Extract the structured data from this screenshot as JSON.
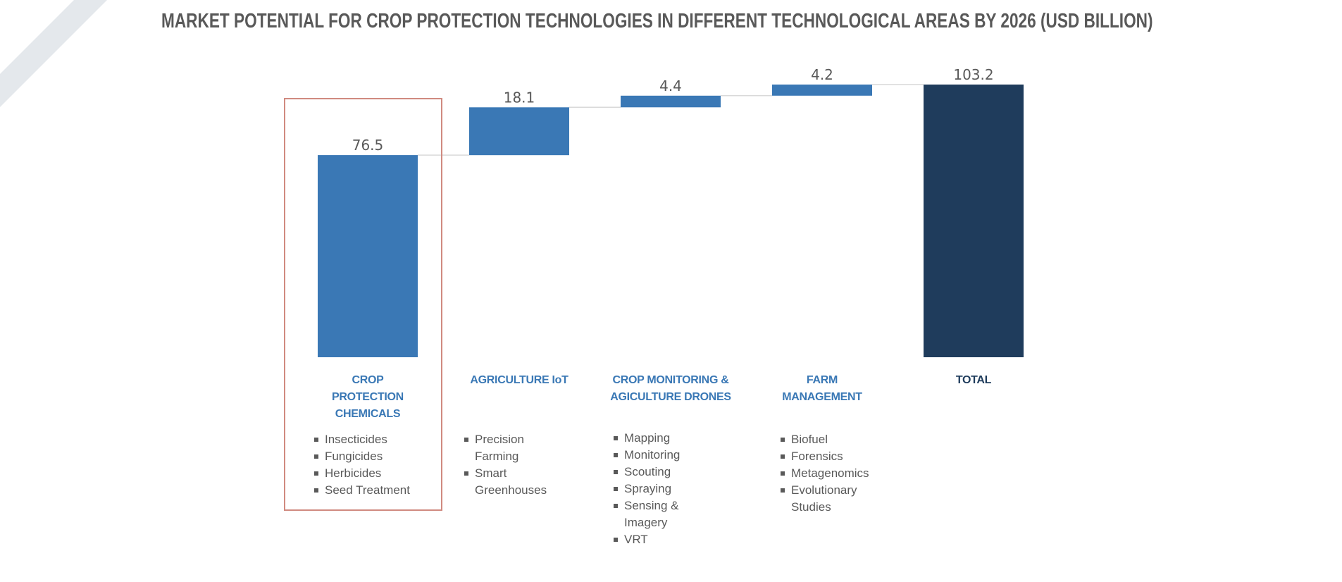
{
  "title": "MARKET POTENTIAL FOR CROP PROTECTION TECHNOLOGIES IN DIFFERENT TECHNOLOGICAL AREAS BY 2026 (USD BILLION)",
  "colors": {
    "increment_bar": "#3a78b5",
    "total_bar": "#1f3c5c",
    "value_label": "#595959",
    "connector": "#d9d9d9",
    "highlight_box": "#d08a80",
    "decor_stripe": "#e4e8ec"
  },
  "chart_data": {
    "type": "bar",
    "subtype": "waterfall",
    "title": "MARKET POTENTIAL FOR CROP PROTECTION TECHNOLOGIES IN DIFFERENT TECHNOLOGICAL AREAS BY 2026 (USD BILLION)",
    "xlabel": "",
    "ylabel": "",
    "ylim": [
      0,
      103.2
    ],
    "grid": false,
    "categories": [
      "CROP PROTECTION CHEMICALS",
      "AGRICULTURE IoT",
      "CROP MONITORING & AGICULTURE DRONES",
      "FARM MANAGEMENT",
      "TOTAL"
    ],
    "values": [
      76.5,
      18.1,
      4.4,
      4.2,
      103.2
    ],
    "value_labels": [
      "76.5",
      "18.1",
      "4.4",
      "4.2",
      "103.2"
    ],
    "is_total": [
      false,
      false,
      false,
      false,
      true
    ],
    "highlighted_category": "CROP PROTECTION CHEMICALS"
  },
  "columns": [
    {
      "label_lines": [
        "CROP",
        "PROTECTION",
        "CHEMICALS"
      ],
      "items": [
        [
          "Insecticides"
        ],
        [
          "Fungicides"
        ],
        [
          "Herbicides"
        ],
        [
          "Seed Treatment"
        ]
      ]
    },
    {
      "label_lines": [
        "AGRICULTURE IoT"
      ],
      "items": [
        [
          "Precision",
          "Farming"
        ],
        [
          "Smart",
          "Greenhouses"
        ]
      ]
    },
    {
      "label_lines": [
        "CROP MONITORING &",
        "AGICULTURE DRONES"
      ],
      "items": [
        [
          "Mapping"
        ],
        [
          "Monitoring"
        ],
        [
          "Scouting"
        ],
        [
          "Spraying"
        ],
        [
          "Sensing &",
          "Imagery"
        ],
        [
          "VRT"
        ]
      ]
    },
    {
      "label_lines": [
        "FARM",
        "MANAGEMENT"
      ],
      "items": [
        [
          "Biofuel"
        ],
        [
          "Forensics"
        ],
        [
          "Metagenomics"
        ],
        [
          "Evolutionary",
          "Studies"
        ]
      ]
    },
    {
      "label_lines": [
        "TOTAL"
      ],
      "items": []
    }
  ]
}
